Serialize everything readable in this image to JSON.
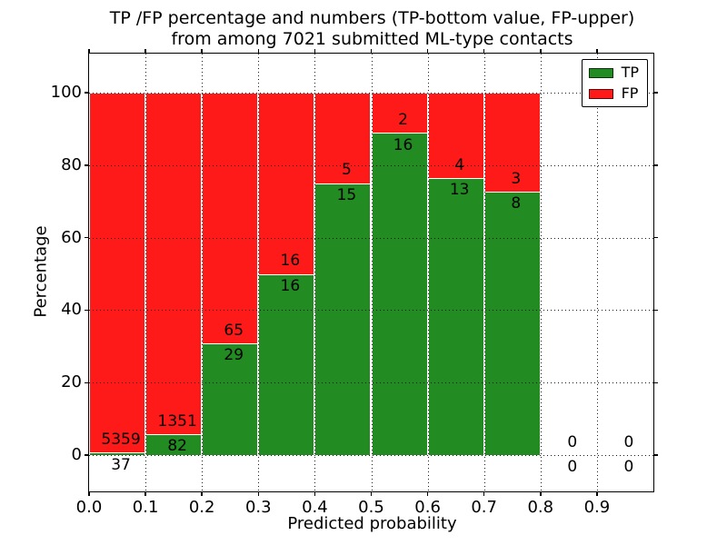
{
  "chart_data": {
    "type": "bar",
    "variant": "stacked-percentage",
    "title": "TP /FP percentage and numbers (TP-bottom value, FP-upper)\nfrom among 7021 submitted ML-type contacts",
    "title_lines": [
      "TP /FP percentage and numbers (TP-bottom value, FP-upper)",
      "from among 7021 submitted ML-type contacts"
    ],
    "xlabel": "Predicted probability",
    "ylabel": "Percentage",
    "xlim": [
      0,
      1.0
    ],
    "ylim": [
      -10,
      110.8
    ],
    "x_tick_labels": [
      "0.0",
      "0.1",
      "0.2",
      "0.3",
      "0.4",
      "0.5",
      "0.6",
      "0.7",
      "0.8",
      "0.9"
    ],
    "y_ticks": [
      0,
      20,
      40,
      60,
      80,
      100
    ],
    "grid": true,
    "legend": {
      "position": "upper right",
      "entries": [
        {
          "label": "TP",
          "color": "#228b22"
        },
        {
          "label": "FP",
          "color": "#ff1a1a"
        }
      ]
    },
    "bins": [
      {
        "range": [
          0.0,
          0.1
        ],
        "tp": 37,
        "fp": 5359,
        "tp_pct": 0.69,
        "fp_pct": 99.31
      },
      {
        "range": [
          0.1,
          0.2
        ],
        "tp": 82,
        "fp": 1351,
        "tp_pct": 5.72,
        "fp_pct": 94.28
      },
      {
        "range": [
          0.2,
          0.3
        ],
        "tp": 29,
        "fp": 65,
        "tp_pct": 30.85,
        "fp_pct": 69.15
      },
      {
        "range": [
          0.3,
          0.4
        ],
        "tp": 16,
        "fp": 16,
        "tp_pct": 50.0,
        "fp_pct": 50.0
      },
      {
        "range": [
          0.4,
          0.5
        ],
        "tp": 15,
        "fp": 5,
        "tp_pct": 75.0,
        "fp_pct": 25.0
      },
      {
        "range": [
          0.5,
          0.6
        ],
        "tp": 16,
        "fp": 2,
        "tp_pct": 88.89,
        "fp_pct": 11.11
      },
      {
        "range": [
          0.6,
          0.7
        ],
        "tp": 13,
        "fp": 4,
        "tp_pct": 76.47,
        "fp_pct": 23.53
      },
      {
        "range": [
          0.7,
          0.8
        ],
        "tp": 8,
        "fp": 3,
        "tp_pct": 72.73,
        "fp_pct": 27.27
      },
      {
        "range": [
          0.8,
          0.9
        ],
        "tp": 0,
        "fp": 0,
        "tp_pct": 0,
        "fp_pct": 0
      },
      {
        "range": [
          0.9,
          1.0
        ],
        "tp": 0,
        "fp": 0,
        "tp_pct": 0,
        "fp_pct": 0
      }
    ],
    "colors": {
      "tp": "#228b22",
      "fp": "#ff1a1a",
      "bar_edge": "#ffffff",
      "grid": "#000000",
      "background": "#ffffff"
    }
  }
}
